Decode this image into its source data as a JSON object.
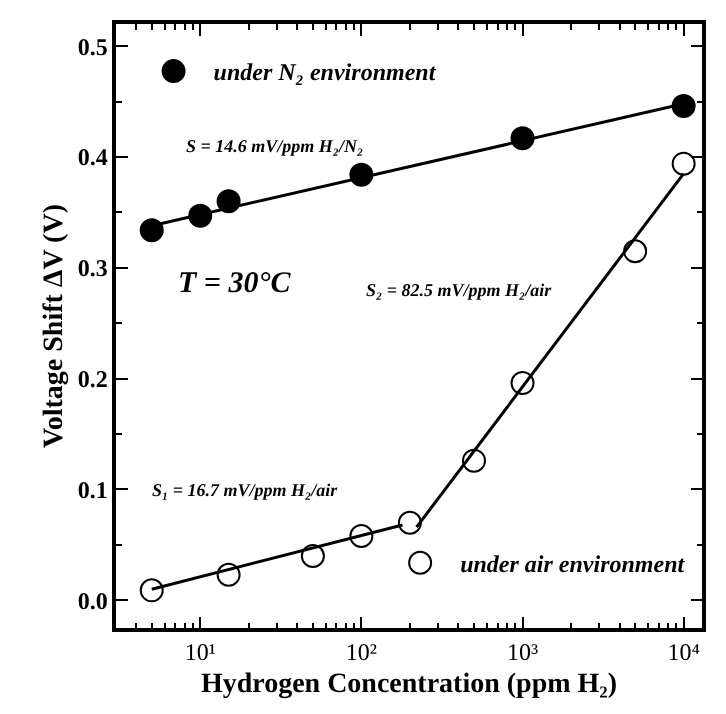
{
  "chart_data": {
    "type": "scatter",
    "xlabel": "Hydrogen Concentration (ppm H₂)",
    "ylabel": "Voltage Shift ΔV (V)",
    "log": "x",
    "xlim": [
      3,
      13000
    ],
    "xticks": [
      {
        "value": 10,
        "label": "10¹"
      },
      {
        "value": 100,
        "label": "10²"
      },
      {
        "value": 1000,
        "label": "10³"
      },
      {
        "value": 10000,
        "label": "10⁴"
      }
    ],
    "ylim": [
      -0.025,
      0.52
    ],
    "yticks": [
      {
        "value": 0,
        "label": "0.0"
      },
      0.1,
      0.2,
      0.3,
      0.4,
      0.5
    ],
    "legend": [
      "top left",
      "bottom right"
    ],
    "series": [
      {
        "name": "under N₂ environment",
        "marker": "circle",
        "color": "#000000",
        "x": [
          5,
          10,
          15,
          100,
          1000,
          10000
        ],
        "values": [
          0.334,
          0.347,
          0.36,
          0.384,
          0.417,
          0.446
        ]
      },
      {
        "name": "under air environment",
        "marker": "circle-open",
        "color": "#000000",
        "x": [
          5,
          15,
          50,
          100,
          200,
          500,
          1000,
          5000,
          10000
        ],
        "values": [
          0.009,
          0.023,
          0.04,
          0.058,
          0.07,
          0.126,
          0.196,
          0.315,
          0.394
        ]
      },
      {
        "type": "line",
        "color": "#000000",
        "x": [
          5,
          10000
        ],
        "values": [
          0.338,
          0.448
        ]
      },
      {
        "type": "line",
        "color": "#000000",
        "x": [
          5,
          180
        ],
        "values": [
          0.01,
          0.068
        ]
      },
      {
        "type": "line",
        "color": "#000000",
        "x": [
          220,
          10000
        ],
        "values": [
          0.066,
          0.385
        ]
      }
    ],
    "annotations": [
      "S = 14.6 mV/ppm H₂/N₂",
      "T = 30°C",
      "S₂ = 82.5 mV/ppm H₂/air",
      "S₁ = 16.7 mV/ppm H₂/air"
    ]
  }
}
